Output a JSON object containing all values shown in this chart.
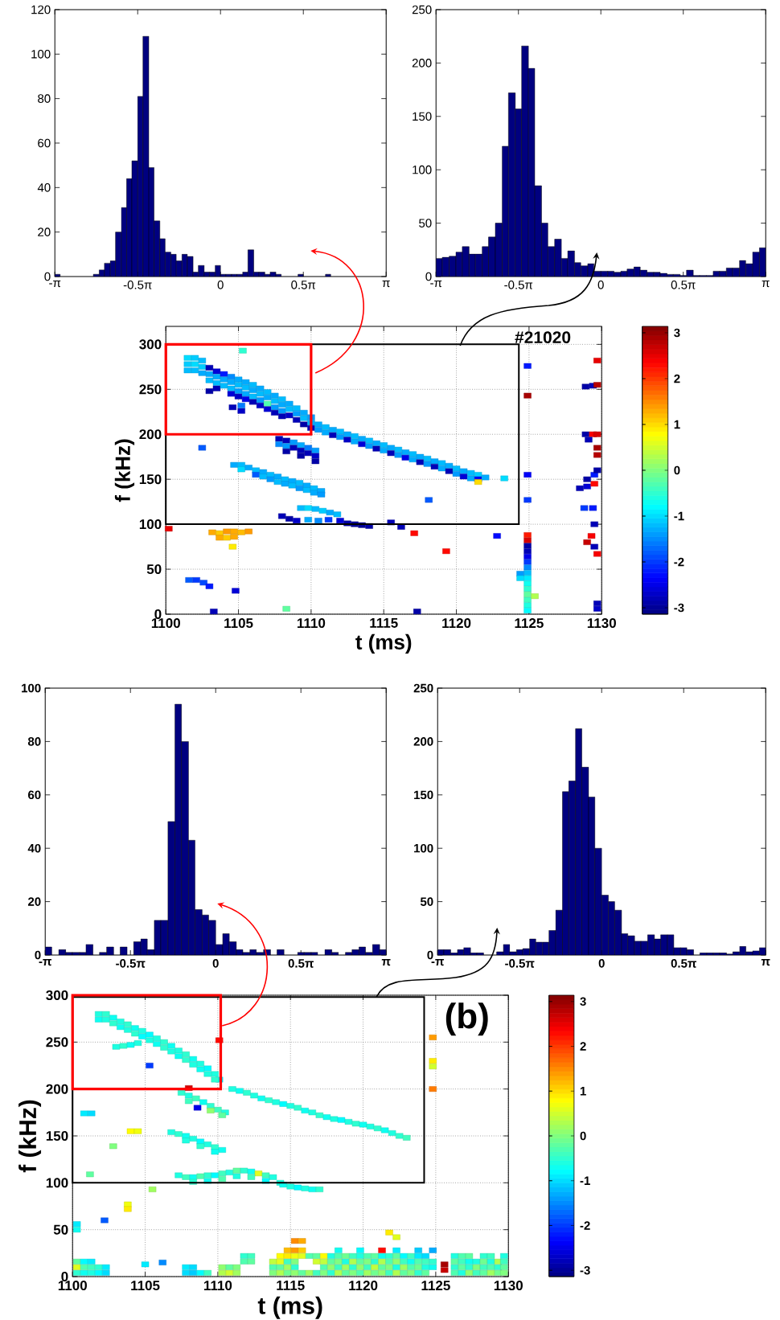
{
  "chart_data": [
    {
      "type": "histogram",
      "color": "#000080",
      "xlim": [
        -3.14,
        3.14
      ],
      "xticks": [
        {
          "value": -3.14,
          "label": "-π"
        },
        {
          "value": -1.57,
          "label": "-0.5π"
        },
        0,
        {
          "value": 1.57,
          "label": "0.5π"
        },
        {
          "value": 3.14,
          "label": "π"
        }
      ],
      "ylim": [
        0,
        120
      ],
      "yticks": [
        0,
        20,
        40,
        60,
        80,
        100,
        120
      ],
      "bins": [
        -3.14,
        -3.04,
        -2.41,
        -2.3,
        -2.2,
        -2.09,
        -1.99,
        -1.88,
        -1.78,
        -1.68,
        -1.57,
        -1.47,
        -1.36,
        -1.26,
        -1.15,
        -1.05,
        -0.94,
        -0.84,
        -0.73,
        -0.63,
        -0.52,
        -0.42,
        -0.31,
        -0.21,
        -0.1,
        0,
        0.1,
        0.21,
        0.31,
        0.42,
        0.52,
        0.63,
        0.73,
        0.84,
        0.94,
        1.05,
        1.15,
        1.47,
        1.57,
        1.99,
        2.09
      ],
      "values": [
        1,
        0,
        1,
        3,
        6,
        7,
        20,
        31,
        44,
        52,
        81,
        108,
        49,
        25,
        17,
        11,
        10,
        7,
        10,
        9,
        2,
        5,
        2,
        2,
        5,
        1,
        1,
        1,
        1,
        2,
        12,
        2,
        2,
        1,
        2,
        1,
        0,
        1,
        0,
        1
      ]
    },
    {
      "type": "histogram",
      "color": "#000080",
      "xlim": [
        -3.14,
        3.14
      ],
      "xticks": [
        {
          "value": -3.14,
          "label": "-π"
        },
        {
          "value": -1.57,
          "label": "-0.5π"
        },
        0,
        {
          "value": 1.57,
          "label": "0.5π"
        },
        {
          "value": 3.14,
          "label": "π"
        }
      ],
      "ylim": [
        0,
        250
      ],
      "yticks": [
        0,
        50,
        100,
        150,
        200,
        250
      ],
      "bins": [
        -3.14,
        -3.02,
        -2.89,
        -2.76,
        -2.64,
        -2.51,
        -2.39,
        -2.26,
        -2.14,
        -2.01,
        -1.88,
        -1.76,
        -1.63,
        -1.51,
        -1.38,
        -1.26,
        -1.13,
        -1.01,
        -0.88,
        -0.75,
        -0.63,
        -0.5,
        -0.38,
        -0.25,
        -0.13,
        0,
        0.13,
        0.25,
        0.38,
        0.5,
        0.63,
        0.75,
        0.88,
        1.01,
        1.13,
        1.26,
        1.38,
        1.51,
        1.63,
        1.76,
        1.88,
        2.01,
        2.14,
        2.26,
        2.39,
        2.51,
        2.64,
        2.76,
        2.89,
        3.02,
        3.14
      ],
      "values": [
        17,
        18,
        19,
        23,
        28,
        21,
        21,
        28,
        37,
        50,
        122,
        172,
        157,
        216,
        195,
        85,
        50,
        28,
        35,
        17,
        24,
        13,
        10,
        12,
        5,
        5,
        5,
        4,
        5,
        7,
        9,
        6,
        4,
        4,
        3,
        2,
        2,
        1,
        6,
        1,
        1,
        1,
        5,
        5,
        8,
        8,
        15,
        12,
        23,
        27
      ]
    },
    {
      "type": "scatter",
      "xlabel": "t (ms)",
      "ylabel": "f (kHz)",
      "annotations": [
        "#21020"
      ],
      "xlim": [
        1100,
        1130
      ],
      "xticks": [
        1100,
        1105,
        1110,
        1115,
        1120,
        1125,
        1130
      ],
      "ylim": [
        0,
        320
      ],
      "yticks": [
        0,
        50,
        100,
        150,
        200,
        250,
        300
      ],
      "clim": [
        -3.14,
        3.14
      ],
      "cticks": [
        -3,
        -2,
        -1,
        0,
        1,
        2,
        3
      ],
      "grid": true,
      "marker": "square",
      "x": [
        1101.5,
        1101.5,
        1101.5,
        1102,
        1102,
        1102,
        1102.5,
        1102.5,
        1102.5,
        1103,
        1103,
        1103,
        1103,
        1103.5,
        1103.5,
        1103.5,
        1103.5,
        1104,
        1104,
        1104,
        1104.5,
        1104.5,
        1104.5,
        1104.5,
        1105,
        1105,
        1105,
        1105,
        1105.5,
        1105.5,
        1105.5,
        1105.5,
        1106,
        1106,
        1106,
        1106,
        1106.5,
        1106.5,
        1106.5,
        1106.5,
        1107,
        1107,
        1107,
        1107,
        1107.5,
        1107.5,
        1107.5,
        1107.5,
        1108,
        1108,
        1108,
        1108,
        1108.5,
        1108.5,
        1108.5,
        1109,
        1109,
        1109,
        1109.5,
        1109.5,
        1109.5,
        1110,
        1110,
        1110,
        1110.5,
        1110.5,
        1111,
        1111,
        1111.5,
        1111.5,
        1112,
        1112,
        1112.5,
        1112.5,
        1113,
        1113,
        1113.5,
        1113.5,
        1114,
        1114,
        1114.5,
        1114.5,
        1115,
        1115,
        1115.5,
        1115.5,
        1116,
        1116,
        1116.5,
        1116.5,
        1117,
        1117,
        1117.5,
        1117.5,
        1118,
        1118,
        1118.5,
        1118.5,
        1119,
        1119,
        1119.5,
        1119.5,
        1120,
        1120,
        1120.5,
        1120.5,
        1121,
        1121,
        1121.5,
        1121.5,
        1121.5,
        1122,
        1107.8,
        1107.8,
        1108.3,
        1108.3,
        1108.3,
        1108.8,
        1108.8,
        1109.3,
        1109.3,
        1109.3,
        1109.8,
        1109.8,
        1110.3,
        1110.3,
        1110.3,
        1104.6,
        1105.2,
        1105.2,
        1104.7,
        1105.2,
        1105.2,
        1105.7,
        1106.2,
        1106.2,
        1106.7,
        1106.7,
        1107.2,
        1107.2,
        1107.7,
        1107.7,
        1108.2,
        1108.2,
        1108.7,
        1108.7,
        1109.2,
        1109.2,
        1109.7,
        1109.7,
        1110.2,
        1110.2,
        1110.7,
        1110.7,
        1108,
        1108.5,
        1109,
        1109.3,
        1109.8,
        1110.3,
        1110.8,
        1111.3,
        1111.8,
        1109.8,
        1110.5,
        1111.2,
        1112,
        1112.5,
        1113,
        1113.5,
        1114,
        1115.5,
        1116.2,
        1117.1,
        1103.2,
        1103.7,
        1104.2,
        1104.7,
        1105.2,
        1105.7,
        1103.7,
        1104.2,
        1104.7,
        1104.6,
        1100.2,
        1101.6,
        1102.1,
        1102.6,
        1103,
        1104.8,
        1103.3,
        1108.3,
        1117.3,
        1102.5,
        1105.3,
        1123.3,
        1118.1,
        1119.3,
        1122.8,
        1124.9,
        1124.9,
        1124.9,
        1124.9,
        1124.9,
        1124.9,
        1124.9,
        1124.9,
        1124.9,
        1124.9,
        1124.9,
        1124.9,
        1124.9,
        1124.9,
        1124.9,
        1124.9,
        1124.9,
        1124.9,
        1124.9,
        1124.4,
        1124.4,
        1125.4,
        1129.7,
        1128.9,
        1129.4,
        1129.7,
        1128.9,
        1129.4,
        1129.7,
        1129.1,
        1129.7,
        1129.7,
        1128.5,
        1129,
        1129.5,
        1129,
        1129.5,
        1129.7,
        1128.8,
        1129.4,
        1129.5,
        1129.3,
        1129,
        1129.5,
        1129.7,
        1129.7,
        1129.7
      ],
      "values": [
        285,
        278,
        271,
        285,
        278,
        271,
        282,
        275,
        268,
        274,
        267,
        260,
        248,
        270,
        264,
        257,
        251,
        267,
        261,
        254,
        264,
        258,
        251,
        245,
        261,
        255,
        248,
        242,
        258,
        252,
        245,
        239,
        255,
        249,
        242,
        236,
        251,
        245,
        238,
        232,
        247,
        241,
        234,
        228,
        243,
        237,
        230,
        224,
        239,
        233,
        226,
        220,
        234,
        228,
        221,
        229,
        223,
        216,
        224,
        218,
        211,
        219,
        213,
        207,
        211,
        205,
        208,
        202,
        205,
        199,
        203,
        197,
        200,
        194,
        198,
        192,
        195,
        189,
        193,
        187,
        190,
        184,
        188,
        182,
        185,
        179,
        183,
        177,
        180,
        174,
        178,
        172,
        175,
        169,
        173,
        167,
        170,
        164,
        168,
        162,
        165,
        159,
        162,
        156,
        159,
        153,
        157,
        151,
        155,
        150,
        147,
        152,
        195,
        189,
        193,
        187,
        181,
        191,
        185,
        188,
        182,
        176,
        185,
        179,
        182,
        176,
        170,
        230,
        226,
        232,
        166,
        166,
        161,
        163,
        160,
        155,
        158,
        153,
        155,
        150,
        153,
        147,
        150,
        145,
        148,
        143,
        146,
        140,
        143,
        138,
        140,
        135,
        137,
        133,
        109,
        106,
        104,
        118,
        118,
        117,
        115,
        113,
        111,
        105,
        104,
        105,
        104,
        101,
        100,
        99,
        98,
        102,
        97,
        90,
        91,
        90,
        92,
        92,
        91,
        92,
        85,
        85,
        86,
        75,
        95,
        38,
        38,
        35,
        31,
        26,
        3,
        6,
        3,
        185,
        293,
        151,
        127,
        70,
        87,
        276,
        243,
        155,
        127,
        88,
        82,
        76,
        70,
        64,
        58,
        52,
        46,
        40,
        34,
        28,
        22,
        16,
        10,
        4,
        45,
        40,
        20,
        282,
        253,
        254,
        255,
        200,
        200,
        200,
        194,
        185,
        177,
        140,
        142,
        145,
        150,
        155,
        160,
        118,
        118,
        100,
        87,
        80,
        75,
        67,
        12,
        6
      ],
      "cvalues": [
        -1.0,
        -1.1,
        -1.2,
        -1.1,
        -1.0,
        -1.2,
        -1.2,
        -1.1,
        -1.3,
        -2.8,
        -1.3,
        -1.2,
        -2.9,
        -2.6,
        -1.3,
        -1.2,
        -2.8,
        -2.2,
        -1.3,
        -1.2,
        -1.5,
        -1.3,
        -1.2,
        -2.6,
        -1.3,
        -1.2,
        -1.4,
        -2.7,
        -1.3,
        -1.2,
        -1.3,
        -2.5,
        -1.2,
        -1.3,
        -1.2,
        -2.8,
        -1.3,
        -1.2,
        -1.4,
        -2.7,
        -1.2,
        -1.3,
        -0.3,
        -2.6,
        -1.3,
        -1.2,
        -1.4,
        -2.8,
        -1.2,
        -1.3,
        -1.4,
        -2.8,
        -1.3,
        -1.2,
        -2.7,
        -1.2,
        -1.4,
        -2.8,
        -1.3,
        -1.2,
        -2.9,
        -1.4,
        -1.3,
        -2.8,
        -1.3,
        -1.4,
        -1.2,
        -1.3,
        -1.3,
        -2.8,
        -1.2,
        -1.4,
        -1.3,
        -2.7,
        -1.2,
        -1.3,
        -1.3,
        -2.6,
        -1.2,
        -1.4,
        -1.3,
        -2.8,
        -1.2,
        -1.3,
        -1.3,
        -2.8,
        -1.2,
        -1.4,
        -1.3,
        -2.5,
        -1.2,
        -1.3,
        -1.3,
        -2.8,
        -1.2,
        -1.4,
        -1.3,
        -2.8,
        -1.2,
        -1.3,
        -1.3,
        -2.8,
        -1.2,
        -1.4,
        -1.3,
        -2.6,
        -1.2,
        -1.3,
        -1.1,
        -2.4,
        1.0,
        -1.3,
        -2.8,
        -1.5,
        -2.8,
        -1.4,
        -2.9,
        -1.4,
        -2.8,
        -1.3,
        -2.8,
        -2.9,
        -1.6,
        -2.8,
        -1.4,
        -2.7,
        -2.9,
        -2.8,
        -2.7,
        -1.6,
        -1.3,
        -1.2,
        -1.0,
        -1.3,
        -1.2,
        -1.8,
        -1.3,
        -1.2,
        -1.2,
        -1.4,
        -1.3,
        -1.2,
        -1.2,
        -1.3,
        -1.3,
        -1.2,
        -1.2,
        -1.4,
        -1.3,
        -1.2,
        -1.2,
        -1.3,
        -1.3,
        -1.4,
        -2.8,
        -2.9,
        -2.7,
        -1.2,
        -1.0,
        -1.2,
        -1.1,
        -1.3,
        -1.2,
        -1.3,
        -1.5,
        -2.0,
        -2.6,
        -2.9,
        -3.0,
        -3.0,
        -2.9,
        -2.8,
        -2.8,
        2.3,
        1.3,
        1.1,
        1.4,
        1.3,
        1.2,
        1.4,
        1.3,
        1.1,
        1.3,
        0.9,
        2.5,
        -1.8,
        -2.0,
        -1.9,
        -2.2,
        -2.6,
        -2.8,
        -0.2,
        -2.9,
        -1.8,
        -0.5,
        -1.0,
        -1.8,
        2.3,
        -2.3,
        -2.2,
        2.9,
        -2.4,
        -2.0,
        2.2,
        2.6,
        -2.9,
        -2.8,
        -2.5,
        -2.0,
        -1.5,
        -1.2,
        -0.9,
        -0.7,
        -0.5,
        -0.2,
        -0.4,
        -0.6,
        -0.8,
        -1.4,
        -1.0,
        0.3,
        2.5,
        -2.9,
        -2.8,
        2.8,
        -2.9,
        2.4,
        2.6,
        -2.8,
        2.9,
        2.8,
        -2.8,
        -2.6,
        2.3,
        -2.9,
        -2.2,
        -2.9,
        -2.0,
        -2.2,
        -2.8,
        2.4,
        2.7,
        -2.8,
        2.4,
        -2.8,
        -2.7
      ]
    },
    {
      "type": "histogram",
      "color": "#000080",
      "xlim": [
        -3.14,
        3.14
      ],
      "xticks": [
        {
          "value": -3.14,
          "label": "-π"
        },
        {
          "value": -1.57,
          "label": "-0.5π"
        },
        0,
        {
          "value": 1.57,
          "label": "0.5π"
        },
        {
          "value": 3.14,
          "label": "π"
        }
      ],
      "ylim": [
        0,
        100
      ],
      "yticks": [
        0,
        20,
        40,
        60,
        80,
        100
      ],
      "bins": [
        -3.14,
        -3.02,
        -2.89,
        -2.76,
        -2.64,
        -2.51,
        -2.39,
        -2.26,
        -2.14,
        -2.01,
        -1.88,
        -1.76,
        -1.63,
        -1.51,
        -1.38,
        -1.26,
        -1.13,
        -1.01,
        -0.88,
        -0.75,
        -0.63,
        -0.5,
        -0.38,
        -0.25,
        -0.13,
        0,
        0.13,
        0.25,
        0.38,
        0.5,
        0.63,
        0.75,
        0.88,
        1.01,
        1.13,
        1.26,
        1.51,
        1.63,
        1.76,
        1.88,
        2.01,
        2.14,
        2.26,
        2.39,
        2.51,
        2.64,
        2.76,
        2.89,
        3.02,
        3.14
      ],
      "values": [
        3,
        0,
        2,
        1,
        1,
        1,
        4,
        0,
        1,
        3,
        0,
        3,
        0,
        5,
        6,
        2,
        13,
        13,
        50,
        94,
        80,
        43,
        17,
        15,
        13,
        4,
        8,
        5,
        2,
        1,
        2,
        1,
        2,
        0,
        2,
        0,
        1,
        1,
        1,
        0,
        2,
        1,
        0,
        1,
        2,
        3,
        1,
        4,
        2
      ]
    },
    {
      "type": "histogram",
      "color": "#000080",
      "xlim": [
        -3.14,
        3.14
      ],
      "xticks": [
        {
          "value": -3.14,
          "label": "-π"
        },
        {
          "value": -1.57,
          "label": "-0.5π"
        },
        0,
        {
          "value": 1.57,
          "label": "0.5π"
        },
        {
          "value": 3.14,
          "label": "π"
        }
      ],
      "ylim": [
        0,
        250
      ],
      "yticks": [
        0,
        50,
        100,
        150,
        200,
        250
      ],
      "bins": [
        -3.14,
        -3.02,
        -2.89,
        -2.76,
        -2.64,
        -2.51,
        -2.39,
        -2.26,
        -2.01,
        -1.88,
        -1.76,
        -1.63,
        -1.51,
        -1.38,
        -1.26,
        -1.13,
        -1.01,
        -0.88,
        -0.75,
        -0.63,
        -0.5,
        -0.38,
        -0.25,
        -0.13,
        0,
        0.13,
        0.25,
        0.38,
        0.5,
        0.63,
        0.75,
        0.88,
        1.01,
        1.13,
        1.26,
        1.38,
        1.51,
        1.63,
        1.76,
        1.88,
        2.01,
        2.14,
        2.26,
        2.39,
        2.51,
        2.64,
        2.76,
        2.89,
        3.02,
        3.14
      ],
      "values": [
        5,
        5,
        2,
        5,
        7,
        2,
        2,
        0,
        3,
        10,
        3,
        5,
        6,
        15,
        12,
        12,
        23,
        42,
        153,
        163,
        212,
        176,
        148,
        100,
        56,
        50,
        42,
        20,
        18,
        13,
        13,
        19,
        15,
        19,
        19,
        7,
        7,
        5,
        0,
        2,
        2,
        2,
        2,
        1,
        3,
        8,
        3,
        4,
        7
      ]
    },
    {
      "type": "scatter",
      "xlabel": "t (ms)",
      "ylabel": "f (kHz)",
      "annotations": [
        "(b)"
      ],
      "xlim": [
        1100,
        1130
      ],
      "xticks": [
        1100,
        1105,
        1110,
        1115,
        1120,
        1125,
        1130
      ],
      "ylim": [
        0,
        300
      ],
      "yticks": [
        0,
        50,
        100,
        150,
        200,
        250,
        300
      ],
      "clim": [
        -3.14,
        3.14
      ],
      "cticks": [
        -3,
        -2,
        -1,
        0,
        1,
        2,
        3
      ],
      "grid": true,
      "marker": "square",
      "x": [
        1101.8,
        1102.3,
        1102.8,
        1103.3,
        1103.8,
        1104.3,
        1104.8,
        1105.3,
        1105.8,
        1106.3,
        1106.8,
        1107.3,
        1107.8,
        1108.3,
        1108.8,
        1109.3,
        1109.8,
        1110.1,
        1101.8,
        1102.3,
        1102.8,
        1103.3,
        1103.8,
        1104.3,
        1104.8,
        1105.3,
        1105.8,
        1106.3,
        1106.8,
        1107.3,
        1107.8,
        1108.3,
        1108.8,
        1109.3,
        1109.8,
        1103,
        1103.5,
        1104,
        1104.5,
        1105.3,
        1110.1,
        1111,
        1111.5,
        1112,
        1112.5,
        1113,
        1113.5,
        1114,
        1114.5,
        1115,
        1115.5,
        1116,
        1116.5,
        1117,
        1117.5,
        1118,
        1118.5,
        1119,
        1119.5,
        1120,
        1120.5,
        1121,
        1121.5,
        1122,
        1122.5,
        1123,
        1107.5,
        1108,
        1108.5,
        1109,
        1109.5,
        1110,
        1110.5,
        1108,
        1108.6,
        1109.5,
        1110.3,
        1108,
        1106.8,
        1107.3,
        1107.8,
        1108.3,
        1108.8,
        1109.3,
        1109.8,
        1110.3,
        1107.8,
        1108.8,
        1109.8,
        1107.3,
        1107.8,
        1108.3,
        1108.8,
        1109.3,
        1109.8,
        1110.3,
        1110.8,
        1111.3,
        1111.8,
        1112.3,
        1112.8,
        1113.3,
        1113.8,
        1108.3,
        1109.3,
        1110.3,
        1111.3,
        1112.3,
        1113.3,
        1114.3,
        1114.5,
        1115,
        1115.5,
        1116,
        1116.5,
        1117,
        1100.8,
        1101.3,
        1104,
        1104.5,
        1102.8,
        1101.2,
        1105.5,
        1103.8,
        1103.8,
        1102.2,
        1100.3,
        1100.3,
        1106.2,
        1121.8,
        1122.3,
        1124.8,
        1124.8,
        1124.8,
        1124.8,
        1100.3,
        1100.3,
        1100.3,
        1100.8,
        1100.8,
        1100.8,
        1101.3,
        1101.3,
        1101.3,
        1101.8,
        1101.8,
        1102.3,
        1102.3,
        1105,
        1107.8,
        1107.8,
        1108.3,
        1108.3,
        1108.8,
        1109.3,
        1110.3,
        1110.3,
        1110.8,
        1110.8,
        1111.3,
        1111.3,
        1111.8,
        1111.8,
        1112.3,
        1112.3,
        1113.8,
        1113.8,
        1113.8,
        1114.3,
        1114.3,
        1114.3,
        1114.3,
        1114.8,
        1114.8,
        1114.8,
        1114.8,
        1114.8,
        1115.3,
        1115.3,
        1115.3,
        1115.3,
        1115.3,
        1115.3,
        1115.8,
        1115.8,
        1115.8,
        1115.8,
        1116.3,
        1116.3,
        1116.8,
        1116.8,
        1116.8,
        1117.3,
        1117.3,
        1117.3,
        1117.3,
        1117.8,
        1117.8,
        1117.8,
        1117.8,
        1118.3,
        1118.3,
        1118.3,
        1118.3,
        1118.3,
        1118.8,
        1118.8,
        1118.8,
        1118.8,
        1119.3,
        1119.3,
        1119.3,
        1119.3,
        1119.8,
        1119.8,
        1119.8,
        1119.8,
        1119.8,
        1120.3,
        1120.3,
        1120.3,
        1120.3,
        1120.8,
        1120.8,
        1120.8,
        1120.8,
        1121.3,
        1121.3,
        1121.3,
        1121.3,
        1121.3,
        1121.8,
        1121.8,
        1121.8,
        1121.8,
        1122.3,
        1122.3,
        1122.3,
        1122.3,
        1122.3,
        1122.8,
        1122.8,
        1122.8,
        1122.8,
        1123.3,
        1123.3,
        1123.3,
        1123.3,
        1123.8,
        1123.8,
        1123.8,
        1123.8,
        1123.8,
        1124.3,
        1124.3,
        1124.3,
        1124.3,
        1124.8,
        1124.8,
        1124.8,
        1125.6,
        1125.6,
        1126.3,
        1126.3,
        1126.3,
        1126.3,
        1126.8,
        1126.8,
        1126.8,
        1126.8,
        1127.3,
        1127.3,
        1127.3,
        1127.3,
        1127.8,
        1127.8,
        1127.8,
        1128.3,
        1128.3,
        1128.3,
        1128.3,
        1128.8,
        1128.8,
        1128.8,
        1128.8,
        1129.3,
        1129.3,
        1129.3,
        1129.7,
        1129.7,
        1129.7,
        1129.7
      ],
      "values": [
        280,
        280,
        276,
        272,
        269,
        265,
        262,
        258,
        254,
        250,
        246,
        241,
        237,
        232,
        227,
        222,
        216,
        210,
        274,
        274,
        270,
        266,
        263,
        259,
        256,
        252,
        248,
        244,
        240,
        235,
        231,
        226,
        221,
        216,
        210,
        245,
        246,
        247,
        249,
        225,
        252,
        200,
        198,
        196,
        193,
        190,
        188,
        186,
        184,
        182,
        180,
        177,
        175,
        172,
        170,
        168,
        167,
        165,
        163,
        162,
        160,
        158,
        156,
        153,
        150,
        148,
        196,
        193,
        190,
        186,
        182,
        178,
        175,
        187,
        180,
        177,
        172,
        201,
        154,
        152,
        150,
        147,
        144,
        141,
        138,
        135,
        145,
        139,
        133,
        108,
        106,
        106,
        107,
        108,
        108,
        110,
        111,
        113,
        113,
        112,
        110,
        108,
        106,
        101,
        102,
        104,
        107,
        106,
        102,
        100,
        98,
        96,
        95,
        94,
        93,
        93,
        174,
        174,
        155,
        155,
        139,
        109,
        93,
        77,
        72,
        60,
        56,
        50,
        15,
        47,
        42,
        255,
        230,
        224,
        200,
        4,
        10,
        16,
        4,
        10,
        16,
        4,
        10,
        16,
        4,
        10,
        4,
        10,
        13,
        4,
        10,
        4,
        10,
        4,
        4,
        4,
        10,
        4,
        10,
        4,
        10,
        16,
        22,
        16,
        22,
        4,
        10,
        16,
        4,
        10,
        16,
        22,
        4,
        10,
        16,
        22,
        28,
        4,
        10,
        16,
        22,
        28,
        38,
        4,
        22,
        28,
        38,
        4,
        22,
        4,
        16,
        22,
        4,
        10,
        16,
        22,
        4,
        10,
        16,
        22,
        4,
        10,
        16,
        22,
        28,
        4,
        10,
        16,
        22,
        4,
        10,
        16,
        22,
        4,
        10,
        16,
        22,
        28,
        4,
        10,
        16,
        22,
        4,
        10,
        16,
        22,
        4,
        10,
        16,
        22,
        28,
        4,
        10,
        16,
        22,
        4,
        10,
        16,
        22,
        28,
        4,
        10,
        16,
        22,
        4,
        10,
        16,
        22,
        4,
        10,
        16,
        22,
        28,
        4,
        10,
        16,
        22,
        10,
        16,
        28,
        7,
        13,
        4,
        10,
        16,
        22,
        4,
        10,
        16,
        22,
        4,
        10,
        16,
        22,
        4,
        10,
        16,
        4,
        10,
        16,
        22,
        4,
        10,
        16,
        22,
        4,
        10,
        16,
        4,
        10,
        16,
        22
      ],
      "cvalues": [
        -0.6,
        -0.5,
        -0.7,
        -0.6,
        -0.5,
        -0.7,
        -0.6,
        -0.8,
        -0.6,
        -0.5,
        -0.7,
        -0.6,
        -0.5,
        -0.7,
        -0.6,
        -0.8,
        -0.6,
        -0.9,
        -0.7,
        -0.6,
        -0.5,
        -0.7,
        -0.6,
        -0.5,
        -0.8,
        -0.6,
        -0.7,
        -0.5,
        -0.6,
        -0.7,
        -0.5,
        -0.6,
        -0.7,
        -0.6,
        -0.5,
        -0.6,
        -0.5,
        -0.7,
        -0.6,
        -2.0,
        2.3,
        -0.6,
        -0.7,
        -0.5,
        -0.6,
        -0.7,
        -0.5,
        -0.6,
        -0.8,
        -0.6,
        -0.5,
        -0.7,
        -0.6,
        -0.5,
        -0.7,
        -0.6,
        -0.8,
        -0.6,
        -0.5,
        -0.7,
        -0.6,
        -0.5,
        -0.7,
        -0.6,
        -0.5,
        -0.4,
        -0.5,
        -0.6,
        -0.4,
        -0.7,
        -0.5,
        -0.4,
        -0.6,
        -0.4,
        -2.5,
        0.1,
        -0.2,
        2.6,
        -0.6,
        -0.5,
        -0.7,
        -0.6,
        -0.8,
        -0.6,
        -0.5,
        -0.7,
        -0.6,
        -0.5,
        -0.7,
        -0.6,
        -0.4,
        -0.7,
        -0.3,
        -0.5,
        -0.8,
        -0.4,
        -0.6,
        -0.2,
        -0.5,
        -0.7,
        0.6,
        -0.4,
        -0.6,
        -0.5,
        -0.7,
        -0.3,
        -0.6,
        -0.4,
        -0.8,
        -0.6,
        -0.7,
        -0.6,
        -0.8,
        -0.6,
        -0.7,
        -0.5,
        -0.9,
        -1.0,
        0.8,
        0.7,
        0.0,
        -0.2,
        0.2,
        0.7,
        0.9,
        -1.8,
        -0.9,
        -0.7,
        -1.5,
        0.9,
        0.6,
        1.4,
        0.9,
        0.5,
        1.6,
        -0.5,
        0.6,
        -0.2,
        -0.7,
        -0.3,
        -0.8,
        -0.6,
        -0.4,
        -0.9,
        -0.8,
        -0.5,
        -1.0,
        -0.9,
        -0.9,
        -1.0,
        -0.9,
        -1.1,
        -1.0,
        -0.8,
        -0.4,
        0.3,
        0.1,
        0.5,
        -0.2,
        0.2,
        0.0,
        -0.3,
        -0.5,
        -0.2,
        -0.4,
        0.0,
        -0.3,
        0.4,
        0.3,
        -0.2,
        0.6,
        0.8,
        -0.1,
        0.2,
        -0.4,
        0.9,
        1.2,
        0.1,
        -0.5,
        0.0,
        0.7,
        1.4,
        1.5,
        -0.2,
        0.6,
        1.1,
        1.3,
        0.2,
        -0.3,
        -0.4,
        0.5,
        -0.2,
        0.0,
        -0.3,
        0.4,
        0.8,
        -0.5,
        0.1,
        -0.2,
        -0.6,
        0.3,
        -0.4,
        0.0,
        -0.3,
        -0.7,
        -0.2,
        0.2,
        -0.6,
        -0.1,
        0.0,
        -0.5,
        0.3,
        -0.4,
        -0.3,
        0.1,
        -0.2,
        -0.6,
        -0.8,
        0.2,
        -0.4,
        0.0,
        -0.3,
        -0.1,
        0.4,
        -0.5,
        -0.2,
        0.1,
        -0.2,
        0.3,
        -0.7,
        2.3,
        -0.4,
        0.0,
        -0.3,
        -0.5,
        0.3,
        -0.6,
        0.1,
        -0.2,
        -0.9,
        -0.2,
        0.2,
        -0.4,
        -0.8,
        0.0,
        -0.3,
        -0.7,
        -0.4,
        -0.5,
        -0.1,
        -0.3,
        -0.9,
        -1.1,
        -0.2,
        -0.6,
        -0.4,
        -1.0,
        -0.7,
        -0.5,
        -1.3,
        2.7,
        2.9,
        -0.3,
        -0.5,
        -0.2,
        -0.6,
        -0.6,
        -0.2,
        -0.4,
        -0.3,
        0.1,
        -0.5,
        -0.7,
        -0.2,
        -0.4,
        0.0,
        -0.6,
        -0.2,
        -0.4,
        -0.1,
        -0.5,
        0.2,
        -0.3,
        -0.6,
        -0.4,
        -0.1,
        -0.5,
        0.3,
        0.0,
        -0.2,
        -0.4,
        -0.6
      ]
    }
  ]
}
